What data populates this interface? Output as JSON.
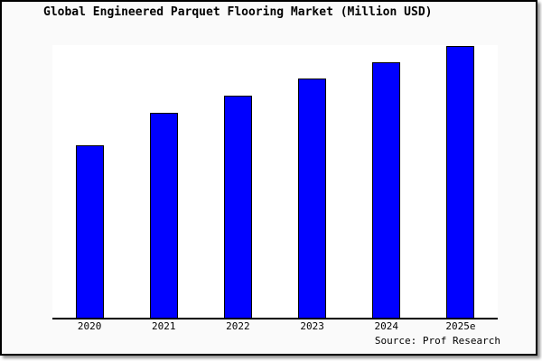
{
  "window": {
    "title": "Global Engineered Parquet Flooring Market (Million USD)"
  },
  "chart_data": {
    "type": "bar",
    "title": "Global Engineered Parquet Flooring Market (Million USD)",
    "categories": [
      "2020",
      "2021",
      "2022",
      "2023",
      "2024",
      "2025e"
    ],
    "values": [
      63.2,
      75.2,
      81.5,
      87.7,
      93.7,
      99.7
    ],
    "values_unit": "percent of plot height (y-axis has no tick labels; relative magnitudes only)",
    "values_relative_to_2020": [
      100,
      118.8,
      128.9,
      138.7,
      148.2,
      157.6
    ],
    "xlabel": "",
    "ylabel": "",
    "ylim": [
      0,
      100
    ],
    "grid": false,
    "legend": null,
    "source": "Source: Prof Research"
  },
  "colors": {
    "bar_fill": "#0000ff",
    "bar_border": "#000000",
    "background": "#fafafa",
    "plot_background": "#ffffff",
    "axis": "#000000",
    "text": "#000000"
  }
}
